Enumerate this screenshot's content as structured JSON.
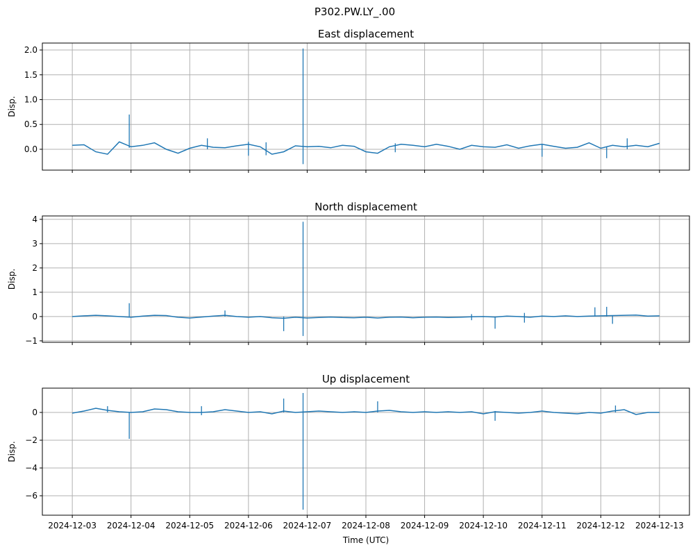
{
  "figure_title": "P302.PW.LY_.00",
  "chart_data": [
    {
      "type": "line",
      "title": "East displacement",
      "xlabel": "",
      "ylabel": "Disp.",
      "x_start": "2024-12-03",
      "x_step_days": 0.2,
      "xlim_days": [
        -0.51,
        10.51
      ],
      "ylim": [
        -0.42,
        2.14
      ],
      "yticks": [
        0,
        0.5,
        1.0,
        1.5,
        2.0
      ],
      "ytick_labels": [
        "0.0",
        "0.5",
        "1.0",
        "1.5",
        "2.0"
      ],
      "grid": true,
      "color": "#1f77b4",
      "values": [
        0.08,
        0.09,
        -0.05,
        -0.1,
        0.15,
        0.05,
        0.08,
        0.13,
        0.0,
        -0.08,
        0.02,
        0.08,
        0.04,
        0.03,
        0.07,
        0.1,
        0.05,
        -0.1,
        -0.05,
        0.07,
        0.05,
        0.06,
        0.03,
        0.08,
        0.06,
        -0.05,
        -0.08,
        0.05,
        0.1,
        0.08,
        0.05,
        0.1,
        0.06,
        0.0,
        0.08,
        0.05,
        0.04,
        0.09,
        0.02,
        0.07,
        0.1,
        0.06,
        0.02,
        0.04,
        0.13,
        0.02,
        0.08,
        0.05,
        0.08,
        0.05,
        0.12
      ],
      "spikes": [
        [
          0.97,
          0.03,
          0.7
        ],
        [
          3.93,
          -0.3,
          2.03
        ],
        [
          2.3,
          0.0,
          0.22
        ],
        [
          3.0,
          -0.13,
          0.15
        ],
        [
          3.3,
          -0.12,
          0.14
        ],
        [
          5.5,
          -0.06,
          0.12
        ],
        [
          8.0,
          -0.15,
          0.1
        ],
        [
          9.1,
          -0.18,
          0.05
        ],
        [
          9.45,
          0.0,
          0.22
        ]
      ]
    },
    {
      "type": "line",
      "title": "North displacement",
      "xlabel": "",
      "ylabel": "Disp.",
      "x_start": "2024-12-03",
      "x_step_days": 0.2,
      "xlim_days": [
        -0.51,
        10.51
      ],
      "ylim": [
        -1.06,
        4.14
      ],
      "yticks": [
        -1,
        0,
        1,
        2,
        3,
        4
      ],
      "ytick_labels": [
        "−1",
        "0",
        "1",
        "2",
        "3",
        "4"
      ],
      "grid": true,
      "color": "#1f77b4",
      "values": [
        0.0,
        0.03,
        0.05,
        0.03,
        0.0,
        -0.03,
        0.02,
        0.05,
        0.04,
        -0.03,
        -0.06,
        -0.02,
        0.02,
        0.05,
        0.0,
        -0.03,
        0.0,
        -0.05,
        -0.07,
        -0.03,
        -0.06,
        -0.04,
        -0.02,
        -0.04,
        -0.05,
        -0.03,
        -0.06,
        -0.03,
        -0.02,
        -0.05,
        -0.03,
        -0.02,
        -0.04,
        -0.03,
        -0.01,
        0.0,
        -0.02,
        0.02,
        0.0,
        -0.03,
        0.02,
        0.0,
        0.03,
        0.0,
        0.02,
        0.03,
        0.04,
        0.05,
        0.06,
        0.02,
        0.03
      ],
      "spikes": [
        [
          0.97,
          0.0,
          0.55
        ],
        [
          3.93,
          -0.8,
          3.9
        ],
        [
          3.6,
          -0.6,
          0.0
        ],
        [
          2.6,
          0.0,
          0.25
        ],
        [
          7.2,
          -0.5,
          0.0
        ],
        [
          6.8,
          -0.15,
          0.1
        ],
        [
          7.7,
          -0.25,
          0.15
        ],
        [
          8.9,
          0.0,
          0.38
        ],
        [
          9.1,
          0.0,
          0.4
        ],
        [
          9.2,
          -0.3,
          0.05
        ]
      ]
    },
    {
      "type": "line",
      "title": "Up displacement",
      "xlabel": "Time (UTC)",
      "ylabel": "Disp.",
      "x_start": "2024-12-03",
      "x_step_days": 0.2,
      "xlim_days": [
        -0.51,
        10.51
      ],
      "ylim": [
        -7.4,
        1.75
      ],
      "yticks": [
        -6,
        -4,
        -2,
        0
      ],
      "ytick_labels": [
        "−6",
        "−4",
        "−2",
        "0"
      ],
      "grid": true,
      "color": "#1f77b4",
      "values": [
        -0.05,
        0.1,
        0.3,
        0.15,
        0.05,
        0.0,
        0.05,
        0.25,
        0.2,
        0.05,
        0.0,
        0.0,
        0.05,
        0.2,
        0.1,
        0.0,
        0.05,
        -0.1,
        0.1,
        0.0,
        0.05,
        0.1,
        0.05,
        0.0,
        0.05,
        0.0,
        0.1,
        0.15,
        0.05,
        0.0,
        0.05,
        0.0,
        0.05,
        0.0,
        0.05,
        -0.1,
        0.05,
        0.0,
        -0.05,
        0.0,
        0.1,
        0.0,
        -0.05,
        -0.1,
        0.0,
        -0.05,
        0.1,
        0.2,
        -0.15,
        0.0,
        0.0
      ],
      "spikes": [
        [
          0.97,
          -1.9,
          0.0
        ],
        [
          3.93,
          -7.0,
          1.4
        ],
        [
          3.6,
          0.0,
          1.0
        ],
        [
          2.2,
          -0.2,
          0.45
        ],
        [
          5.2,
          0.0,
          0.8
        ],
        [
          7.2,
          -0.6,
          0.1
        ],
        [
          9.25,
          0.0,
          0.5
        ],
        [
          0.6,
          0.0,
          0.45
        ]
      ]
    }
  ],
  "xtick_labels": [
    "2024-12-03",
    "2024-12-04",
    "2024-12-05",
    "2024-12-06",
    "2024-12-07",
    "2024-12-08",
    "2024-12-09",
    "2024-12-10",
    "2024-12-11",
    "2024-12-12",
    "2024-12-13"
  ]
}
